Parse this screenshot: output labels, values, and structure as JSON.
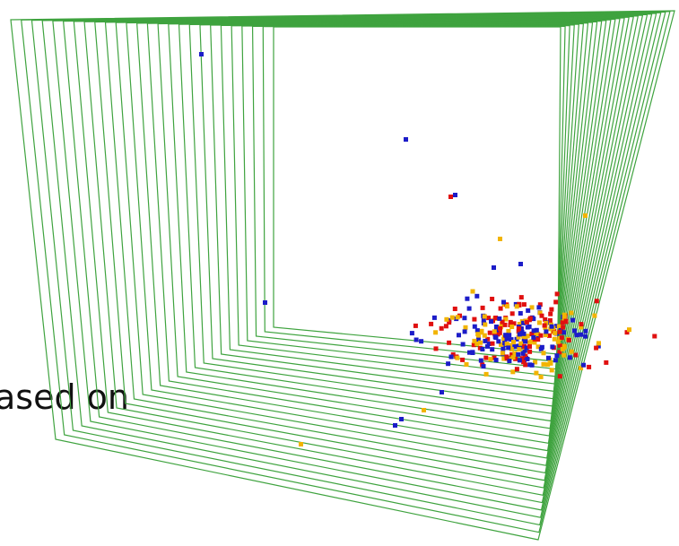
{
  "caption": "ased on"
}
